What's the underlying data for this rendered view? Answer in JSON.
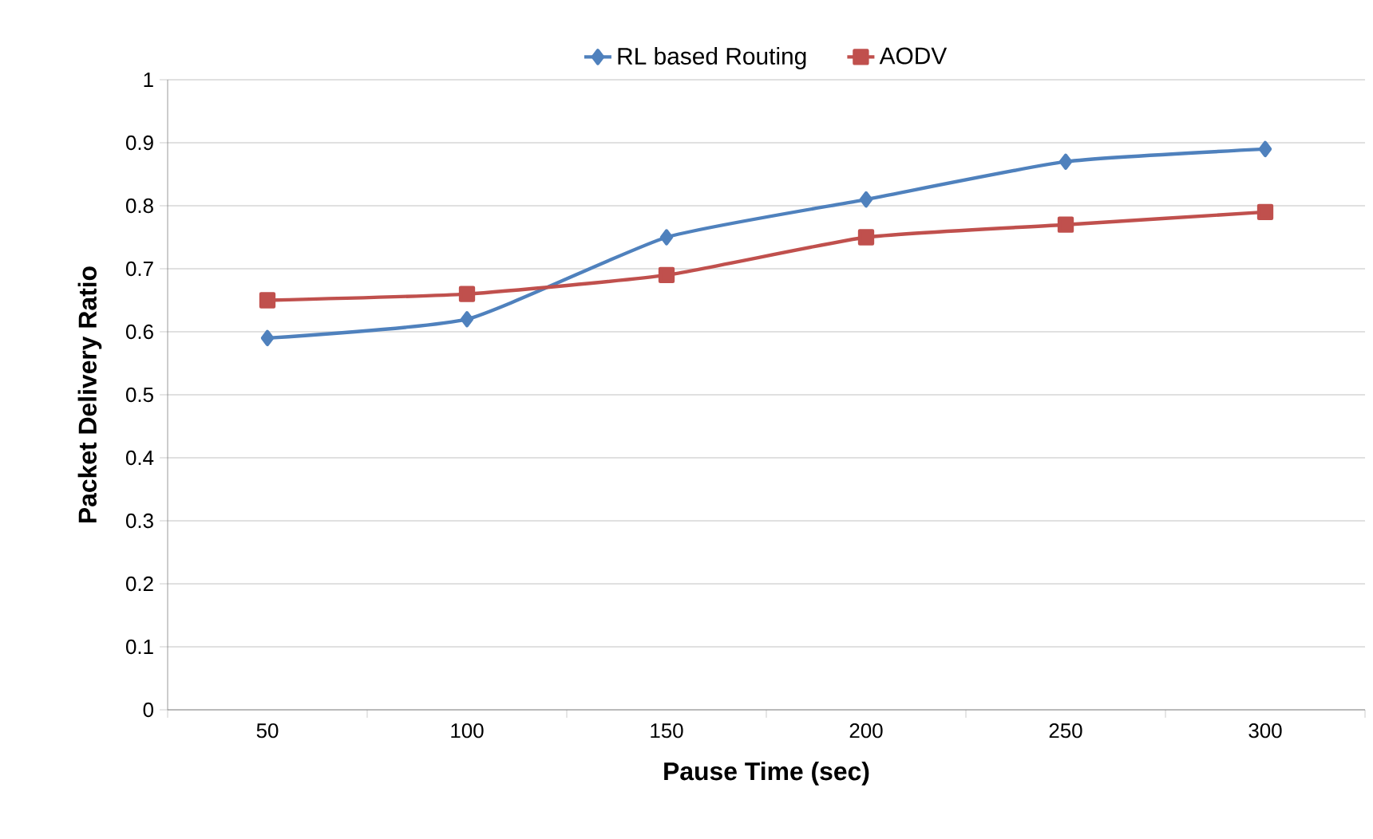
{
  "chart_data": {
    "type": "line",
    "xlabel": "Pause Time (sec)",
    "ylabel": "Packet Delivery Ratio",
    "categories": [
      "50",
      "100",
      "150",
      "200",
      "250",
      "300"
    ],
    "series": [
      {
        "name": "RL based Routing",
        "color": "#4f81bd",
        "marker": "diamond",
        "values": [
          0.59,
          0.62,
          0.75,
          0.81,
          0.87,
          0.89
        ]
      },
      {
        "name": "AODV",
        "color": "#c0504d",
        "marker": "square",
        "values": [
          0.65,
          0.66,
          0.69,
          0.75,
          0.77,
          0.79
        ]
      }
    ],
    "ylim": [
      0,
      1
    ],
    "yticks": [
      0,
      0.1,
      0.2,
      0.3,
      0.4,
      0.5,
      0.6,
      0.7,
      0.8,
      0.9,
      1
    ],
    "grid": "y",
    "legend": "top",
    "line_style": "solid"
  }
}
